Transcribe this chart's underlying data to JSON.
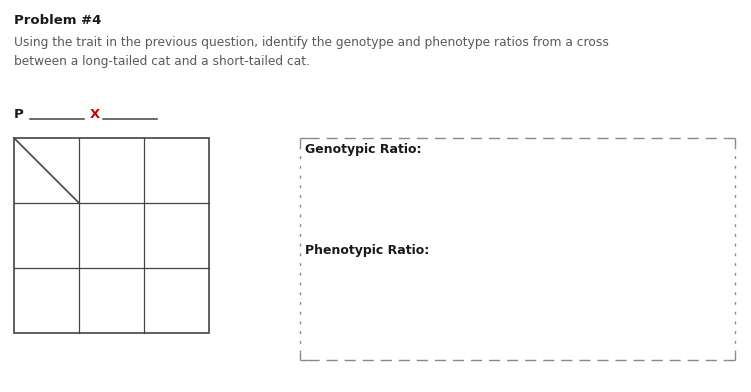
{
  "title": "Problem #4",
  "body_text": "Using the trait in the previous question, identify the genotype and phenotype ratios from a cross\nbetween a long-tailed cat and a short-tailed cat.",
  "p_label": "P",
  "x_label": "X",
  "genotypic_label": "Genotypic Ratio:",
  "phenotypic_label": "Phenotypic Ratio:",
  "title_color": "#1a1a1a",
  "body_color": "#595959",
  "line_color": "#444444",
  "dash_color": "#888888",
  "x_color": "#cc0000",
  "bg_color": "#ffffff",
  "grid_rows": 3,
  "grid_cols": 3,
  "fig_width": 7.51,
  "fig_height": 3.92,
  "dpi": 100
}
